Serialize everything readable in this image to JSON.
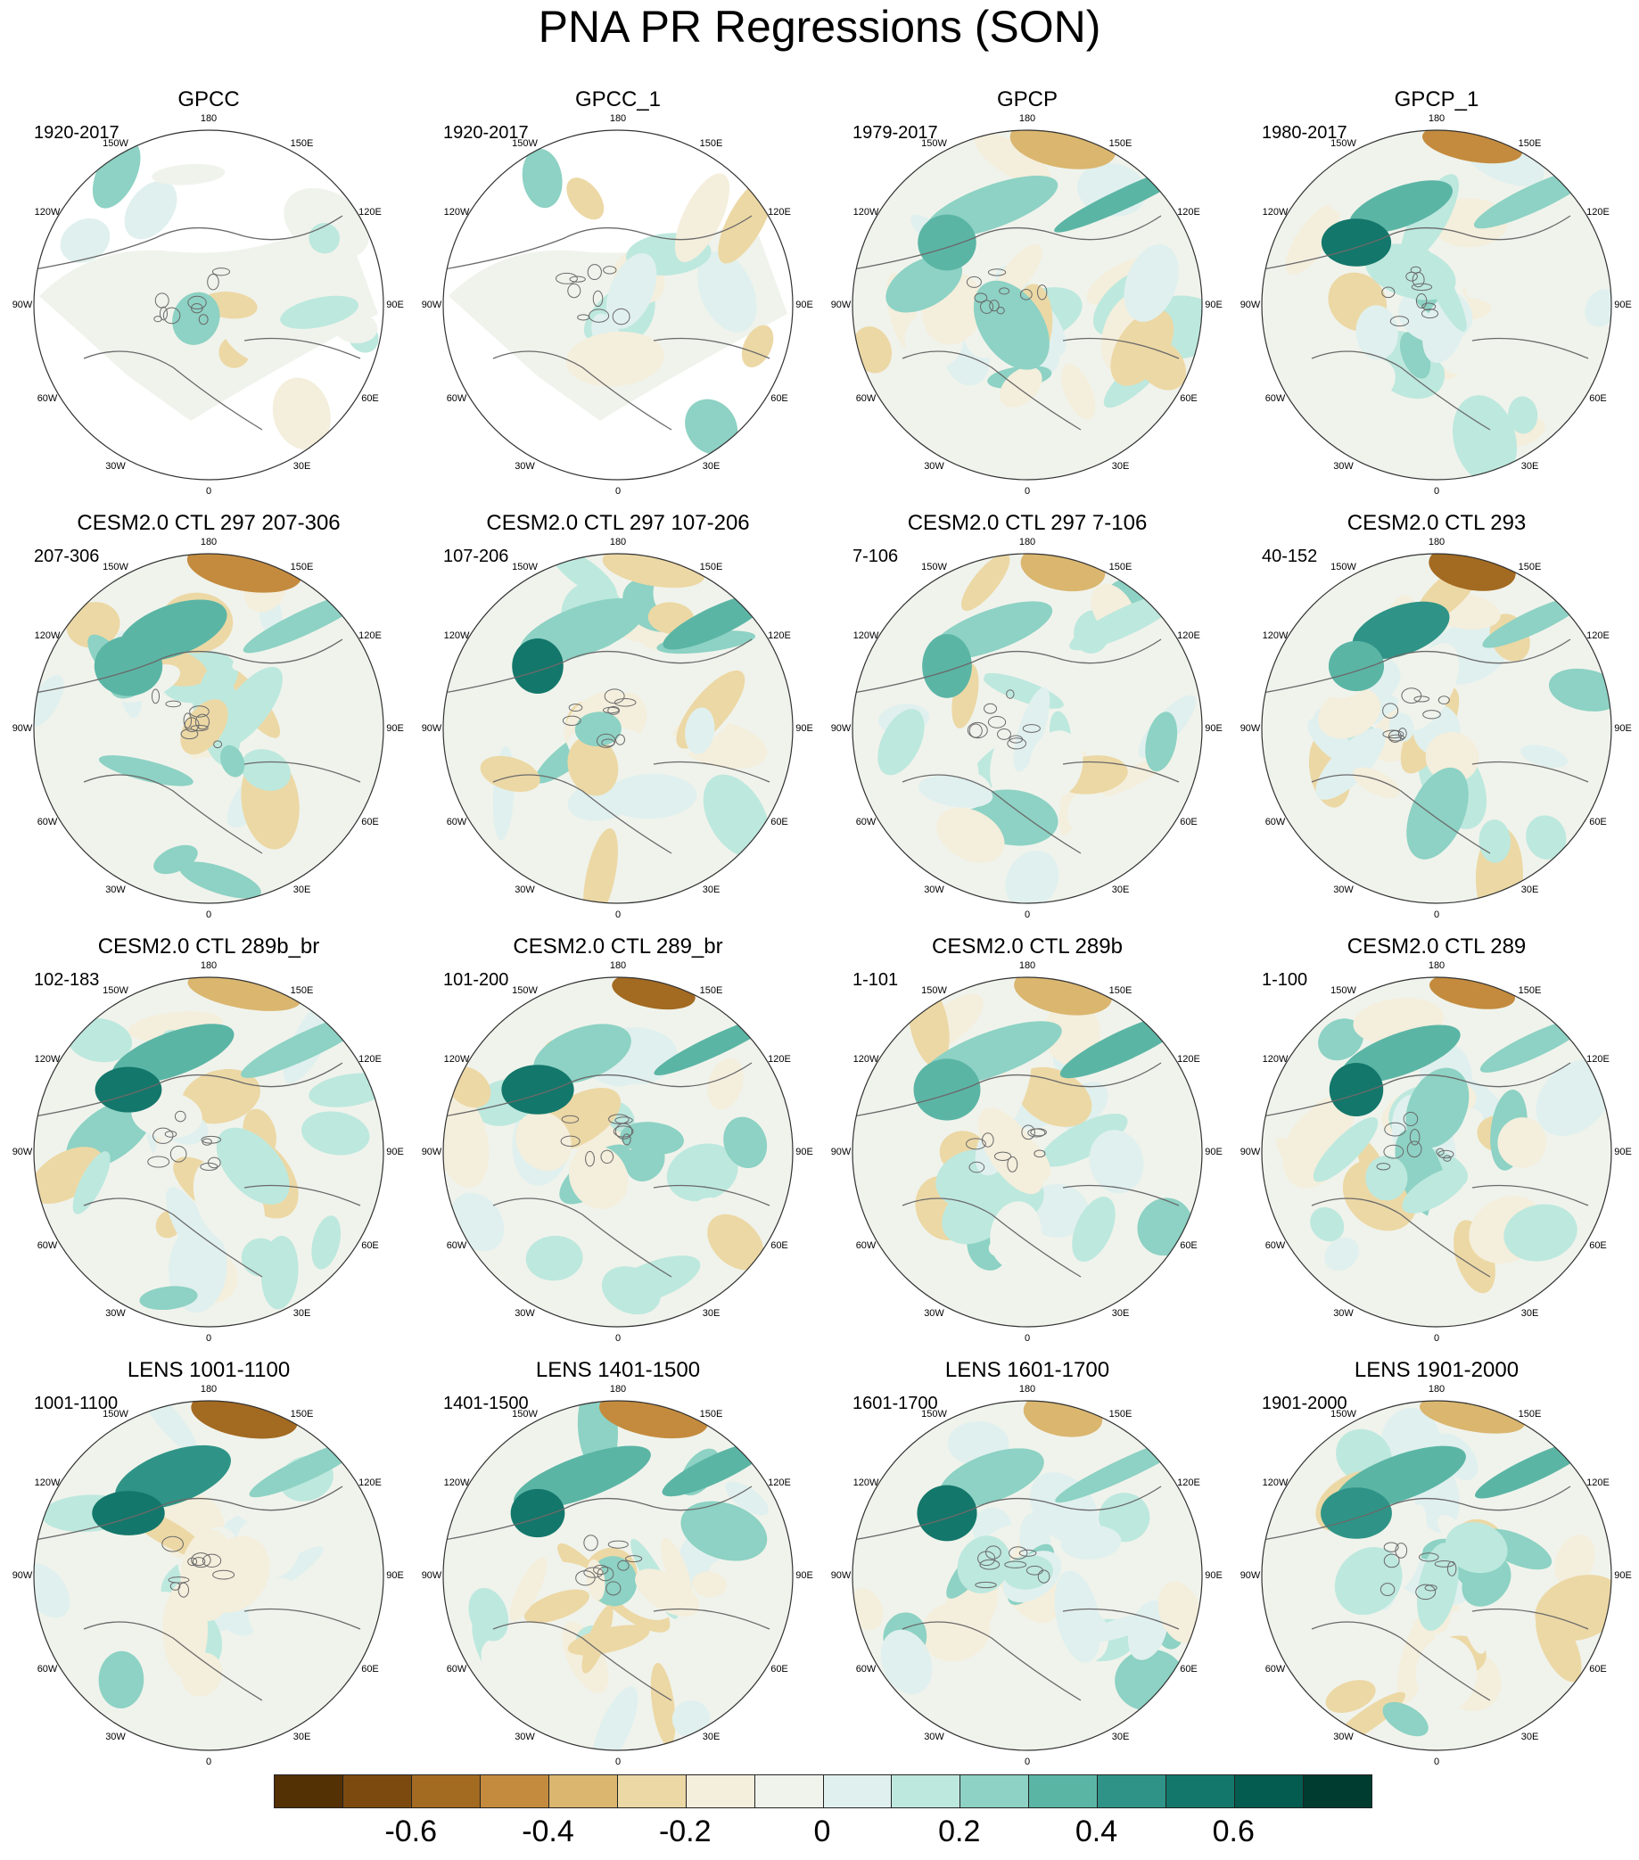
{
  "title": "PNA PR Regressions (SON)",
  "chart_data": {
    "type": "heatmap",
    "projection": "north-polar-stereographic",
    "variable": "PR regression on PNA",
    "season": "SON",
    "longitude_labels": [
      "180",
      "150E",
      "120E",
      "90E",
      "60E",
      "30E",
      "0",
      "30W",
      "60W",
      "90W",
      "120W",
      "150W"
    ],
    "panels": [
      {
        "title": "GPCC",
        "period": "1920-2017",
        "coverage": "land",
        "seed": 3
      },
      {
        "title": "GPCC_1",
        "period": "1920-2017",
        "coverage": "land",
        "seed": 7
      },
      {
        "title": "GPCP",
        "period": "1979-2017",
        "coverage": "full",
        "seed": 11
      },
      {
        "title": "GPCP_1",
        "period": "1980-2017",
        "coverage": "full",
        "seed": 13
      },
      {
        "title": "CESM2.0 CTL 297 207-306",
        "period": "207-306",
        "coverage": "full",
        "seed": 17
      },
      {
        "title": "CESM2.0 CTL 297 107-206",
        "period": "107-206",
        "coverage": "full",
        "seed": 19
      },
      {
        "title": "CESM2.0 CTL 297 7-106",
        "period": "7-106",
        "coverage": "full",
        "seed": 23
      },
      {
        "title": "CESM2.0 CTL 293",
        "period": "40-152",
        "coverage": "full",
        "seed": 29
      },
      {
        "title": "CESM2.0 CTL 289b_br",
        "period": "102-183",
        "coverage": "full",
        "seed": 31
      },
      {
        "title": "CESM2.0 CTL 289_br",
        "period": "101-200",
        "coverage": "full",
        "seed": 37
      },
      {
        "title": "CESM2.0 CTL 289b",
        "period": "1-101",
        "coverage": "full",
        "seed": 41
      },
      {
        "title": "CESM2.0 CTL 289",
        "period": "1-100",
        "coverage": "full",
        "seed": 43
      },
      {
        "title": "LENS 1001-1100",
        "period": "1001-1100",
        "coverage": "full",
        "seed": 47
      },
      {
        "title": "LENS 1401-1500",
        "period": "1401-1500",
        "coverage": "full",
        "seed": 53
      },
      {
        "title": "LENS 1601-1700",
        "period": "1601-1700",
        "coverage": "full",
        "seed": 59
      },
      {
        "title": "LENS 1901-2000",
        "period": "1901-2000",
        "coverage": "full",
        "seed": 61
      }
    ],
    "colorbar": {
      "levels": [
        -0.7,
        -0.6,
        -0.5,
        -0.4,
        -0.3,
        -0.2,
        -0.1,
        0,
        0.1,
        0.2,
        0.3,
        0.4,
        0.5,
        0.6,
        0.7
      ],
      "colors": [
        "#543005",
        "#7c4a0f",
        "#a36a21",
        "#c48b3e",
        "#dab66f",
        "#ecd8a5",
        "#f4eedc",
        "#f0f3ec",
        "#e0f0ee",
        "#bde8de",
        "#8dd2c4",
        "#5bb5a5",
        "#2f9487",
        "#14776b",
        "#035c4f",
        "#003c30"
      ],
      "tick_labels": [
        "-0.6",
        "-0.4",
        "-0.2",
        "0",
        "0.2",
        "0.4",
        "0.6"
      ],
      "tick_values": [
        -0.6,
        -0.4,
        -0.2,
        0,
        0.2,
        0.4,
        0.6
      ]
    }
  }
}
